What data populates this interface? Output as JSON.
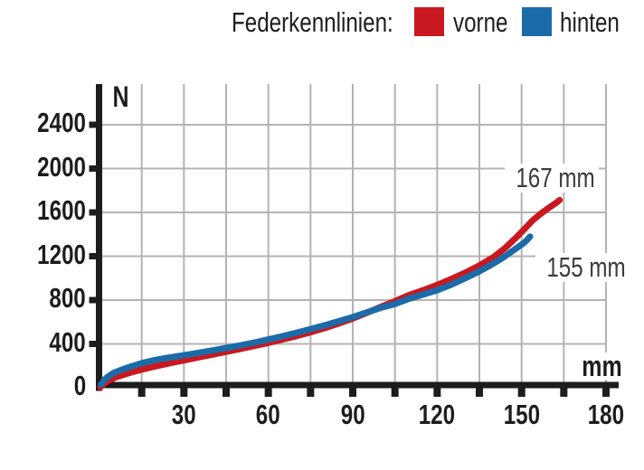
{
  "legend": {
    "title": "Federkennlinien:",
    "series": [
      {
        "label": "vorne",
        "color": "#c9181f"
      },
      {
        "label": "hinten",
        "color": "#1c6ba9"
      }
    ]
  },
  "chart_data": {
    "type": "line",
    "title": "Federkennlinien",
    "xlabel": "mm",
    "ylabel": "N",
    "xlim": [
      0,
      186
    ],
    "ylim": [
      0,
      2750
    ],
    "x_tick_labels": [
      30,
      60,
      90,
      120,
      150,
      180
    ],
    "x_minor_tick_step": 15,
    "x_axis_max_gridline": 180,
    "y_tick_labels": [
      0,
      400,
      800,
      1200,
      1600,
      2000,
      2400
    ],
    "y_max_gridline": 2400,
    "grid": "on",
    "legend_position": "top-center",
    "series": [
      {
        "name": "vorne",
        "color": "#c9181f",
        "end_label": "167 mm",
        "end_value_mm": 167,
        "points": [
          [
            0.3,
            5
          ],
          [
            2,
            45
          ],
          [
            4,
            75
          ],
          [
            6,
            98
          ],
          [
            9,
            122
          ],
          [
            12,
            146
          ],
          [
            16,
            172
          ],
          [
            20,
            196
          ],
          [
            25,
            224
          ],
          [
            30,
            250
          ],
          [
            35,
            276
          ],
          [
            40,
            302
          ],
          [
            45,
            328
          ],
          [
            50,
            354
          ],
          [
            55,
            382
          ],
          [
            60,
            410
          ],
          [
            65,
            440
          ],
          [
            70,
            472
          ],
          [
            75,
            506
          ],
          [
            80,
            544
          ],
          [
            85,
            586
          ],
          [
            90,
            632
          ],
          [
            95,
            684
          ],
          [
            100,
            738
          ],
          [
            105,
            790
          ],
          [
            110,
            845
          ],
          [
            115,
            890
          ],
          [
            120,
            938
          ],
          [
            125,
            992
          ],
          [
            130,
            1050
          ],
          [
            135,
            1115
          ],
          [
            140,
            1192
          ],
          [
            144,
            1272
          ],
          [
            148,
            1368
          ],
          [
            151,
            1448
          ],
          [
            154,
            1528
          ],
          [
            157,
            1592
          ],
          [
            160,
            1648
          ],
          [
            162,
            1682
          ],
          [
            163.5,
            1712
          ]
        ]
      },
      {
        "name": "hinten",
        "color": "#1c6ba9",
        "end_label": "155 mm",
        "end_value_mm": 155,
        "points": [
          [
            0.5,
            30
          ],
          [
            2,
            80
          ],
          [
            3.5,
            110
          ],
          [
            5,
            135
          ],
          [
            8,
            166
          ],
          [
            11,
            192
          ],
          [
            15,
            224
          ],
          [
            20,
            254
          ],
          [
            25,
            276
          ],
          [
            30,
            296
          ],
          [
            35,
            318
          ],
          [
            40,
            340
          ],
          [
            45,
            363
          ],
          [
            50,
            386
          ],
          [
            55,
            412
          ],
          [
            60,
            440
          ],
          [
            65,
            470
          ],
          [
            70,
            502
          ],
          [
            75,
            535
          ],
          [
            80,
            570
          ],
          [
            85,
            606
          ],
          [
            90,
            645
          ],
          [
            95,
            688
          ],
          [
            100,
            730
          ],
          [
            105,
            764
          ],
          [
            110,
            812
          ],
          [
            115,
            850
          ],
          [
            120,
            890
          ],
          [
            125,
            940
          ],
          [
            130,
            1000
          ],
          [
            135,
            1062
          ],
          [
            139,
            1118
          ],
          [
            143,
            1180
          ],
          [
            146,
            1234
          ],
          [
            149,
            1288
          ],
          [
            151,
            1325
          ],
          [
            152.3,
            1358
          ],
          [
            153,
            1380
          ]
        ]
      }
    ],
    "annotations": [
      {
        "text": "167 mm",
        "series": "vorne"
      },
      {
        "text": "155 mm",
        "series": "hinten"
      }
    ]
  },
  "colors": {
    "background": "#ffffff",
    "axis": "#1d1d1b",
    "grid": "#b3b3b3",
    "annotation_text": "#3c3c3b",
    "front_red": "#c9181f",
    "rear_blue": "#1c6ba9"
  }
}
